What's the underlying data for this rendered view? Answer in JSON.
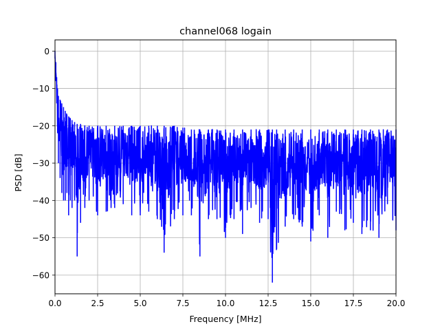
{
  "chart_data": {
    "type": "line",
    "title": "channel068 logain",
    "xlabel": "Frequency [MHz]",
    "ylabel": "PSD [dB]",
    "xlim": [
      0,
      20
    ],
    "ylim": [
      -65,
      3
    ],
    "xticks": [
      0,
      2.5,
      5,
      7.5,
      10,
      12.5,
      15,
      17.5,
      20
    ],
    "xtick_labels": [
      "0.0",
      "2.5",
      "5.0",
      "7.5",
      "10.0",
      "12.5",
      "15.0",
      "17.5",
      "20.0"
    ],
    "yticks": [
      0,
      -10,
      -20,
      -30,
      -40,
      -50,
      -60
    ],
    "ytick_labels": [
      "0",
      "−10",
      "−20",
      "−30",
      "−40",
      "−50",
      "−60"
    ],
    "grid": true,
    "series": [
      {
        "color": "#0000ff",
        "x": [
          0,
          0.05,
          0.1,
          0.15,
          0.2,
          0.3,
          0.4,
          0.5,
          0.6,
          0.7,
          0.8,
          0.9,
          1.0,
          1.15,
          1.3,
          1.5,
          1.75,
          2.0,
          2.5,
          3.0,
          3.5,
          4.0,
          4.5,
          5.0,
          5.5,
          6.0,
          6.4,
          7.0,
          7.5,
          8.0,
          8.5,
          9.0,
          9.5,
          10.0,
          10.5,
          11.0,
          11.5,
          12.0,
          12.5,
          12.75,
          13.0,
          13.5,
          14.0,
          14.5,
          15.0,
          15.5,
          16.0,
          16.5,
          17.0,
          17.5,
          18.0,
          18.5,
          19.0,
          19.5,
          20.0
        ],
        "y_upper": [
          0,
          -3,
          -7,
          -10,
          -12,
          -13,
          -14,
          -15,
          -16,
          -17,
          -17.5,
          -18,
          -18.5,
          -19,
          -19.5,
          -19.5,
          -20,
          -20,
          -20,
          -20,
          -20,
          -20,
          -20,
          -20,
          -20,
          -20,
          -20,
          -20,
          -20.5,
          -21,
          -21,
          -21,
          -21,
          -21,
          -21,
          -21,
          -21,
          -21,
          -21,
          -21,
          -21,
          -21,
          -21,
          -21,
          -21,
          -21,
          -21,
          -21,
          -21,
          -21,
          -21,
          -21,
          -21,
          -21,
          -21
        ],
        "y_lower": [
          -2,
          -8,
          -14,
          -22,
          -30,
          -34,
          -38,
          -40,
          -40,
          -38,
          -44,
          -40,
          -42,
          -40,
          -55,
          -46,
          -42,
          -40,
          -44,
          -43,
          -42,
          -41,
          -44,
          -44,
          -43,
          -45,
          -54,
          -45,
          -44,
          -44,
          -55,
          -45,
          -45,
          -50,
          -45,
          -49,
          -42,
          -46,
          -45,
          -62,
          -53,
          -47,
          -45,
          -47,
          -51,
          -44,
          -50,
          -43,
          -48,
          -46,
          -49,
          -48,
          -50,
          -41,
          -48
        ]
      }
    ]
  }
}
